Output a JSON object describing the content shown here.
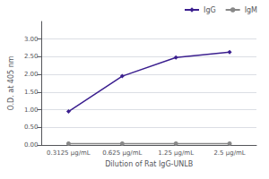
{
  "chart_data": {
    "type": "line",
    "xlabel": "Dilution of Rat IgG-UNLB",
    "ylabel": "O.D. at 405 nm",
    "categories": [
      "0.3125 μg/mL",
      "0.625 μg/mL",
      "1.25 μg/mL",
      "2.5 μg/mL"
    ],
    "series": [
      {
        "name": "IgG",
        "color": "#3b1f8f",
        "marker": "diamond",
        "values": [
          0.95,
          1.95,
          2.48,
          2.63
        ]
      },
      {
        "name": "IgM",
        "color": "#888888",
        "marker": "circle",
        "values": [
          0.04,
          0.04,
          0.04,
          0.04
        ]
      }
    ],
    "ylim": [
      0.0,
      3.5
    ],
    "yticks": [
      {
        "value": 0,
        "label": "0.00"
      },
      {
        "value": 0.5,
        "label": "0.50"
      },
      {
        "value": 1,
        "label": "1.00"
      },
      {
        "value": 1.5,
        "label": "1.50"
      },
      {
        "value": 2,
        "label": "2.00"
      },
      {
        "value": 2.5,
        "label": "2.50"
      },
      {
        "value": 3,
        "label": "3.00"
      }
    ],
    "grid": true,
    "legend": "upper right"
  }
}
